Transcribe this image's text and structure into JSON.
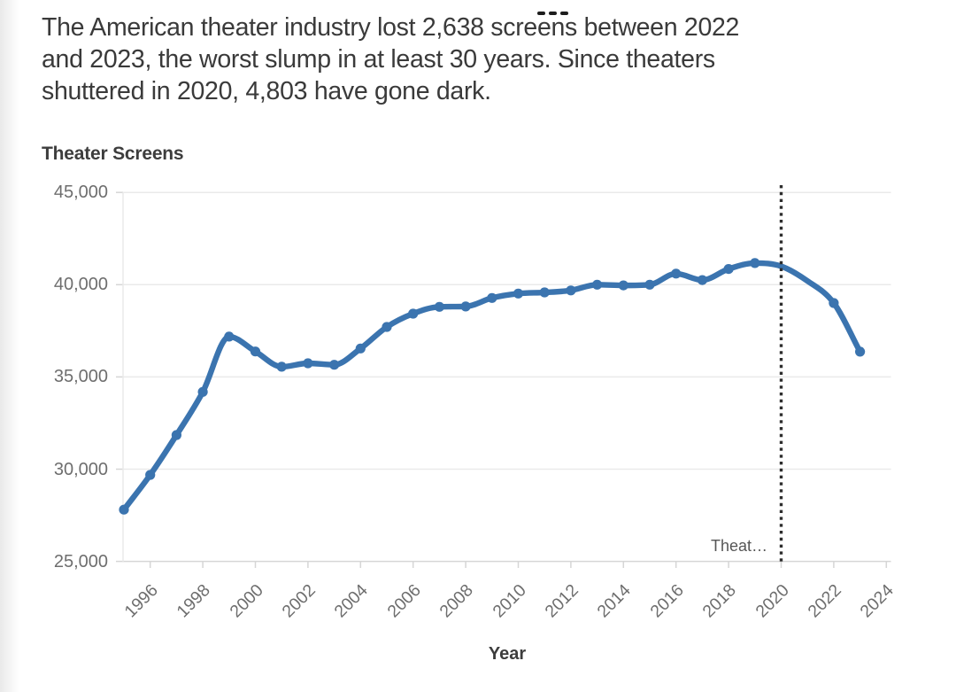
{
  "article": {
    "subtitle_lines": [
      "The American theater industry lost 2,638 screens between 2022",
      "and 2023, the worst slump in at least 30 years. Since theaters",
      "shuttered in 2020, 4,803 have gone dark."
    ],
    "clipped_headline": {
      "visible": "bottom edge of cropped headline",
      "mark_count": 3,
      "mark_x": [
        607,
        620,
        633
      ]
    }
  },
  "chart": {
    "title": "Theater Screens",
    "x_axis_title": "Year",
    "annotation_label": "Theat…"
  },
  "colors": {
    "line": "#3b74af",
    "grid": "#eaeaea",
    "axis": "#d6d6d6",
    "dash_line": "#2d2d2d",
    "text_dark": "#3a3a3a",
    "text_axis": "#6e6e6e",
    "fragment": "#1d1d1d"
  },
  "chart_data": {
    "type": "line",
    "title": "Theater Screens",
    "xlabel": "Year",
    "ylabel": "Theater Screens",
    "x": [
      1995,
      1996,
      1997,
      1998,
      1999,
      2000,
      2001,
      2002,
      2003,
      2004,
      2005,
      2006,
      2007,
      2008,
      2009,
      2010,
      2011,
      2012,
      2013,
      2014,
      2015,
      2016,
      2017,
      2018,
      2019,
      2020,
      2021,
      2022,
      2023
    ],
    "values": [
      27805,
      29690,
      31850,
      34186,
      37185,
      36380,
      35550,
      35740,
      35660,
      36540,
      37710,
      38430,
      38800,
      38820,
      39280,
      39520,
      39580,
      39690,
      40000,
      39960,
      40000,
      40600,
      40250,
      40850,
      41172,
      40998,
      40200,
      39007,
      36369
    ],
    "markers_hidden_for_x": [
      2020,
      2021
    ],
    "xlim": [
      1995,
      2024.2
    ],
    "ylim": [
      25000,
      45000
    ],
    "yticks": [
      25000,
      30000,
      35000,
      40000,
      45000
    ],
    "ytick_labels": [
      "25,000",
      "30,000",
      "35,000",
      "40,000",
      "45,000"
    ],
    "xticks": [
      1996,
      1998,
      2000,
      2002,
      2004,
      2006,
      2008,
      2010,
      2012,
      2014,
      2016,
      2018,
      2020,
      2022,
      2024
    ],
    "xtick_labels": [
      "1996",
      "1998",
      "2000",
      "2002",
      "2004",
      "2006",
      "2008",
      "2010",
      "2012",
      "2014",
      "2016",
      "2018",
      "2020",
      "2022",
      "2024"
    ],
    "grid": "horizontal-only",
    "legend": "none",
    "line_smoothing": "monotone",
    "annotation_line": {
      "x": 2020,
      "style": "dotted",
      "label": "Theat…"
    }
  }
}
